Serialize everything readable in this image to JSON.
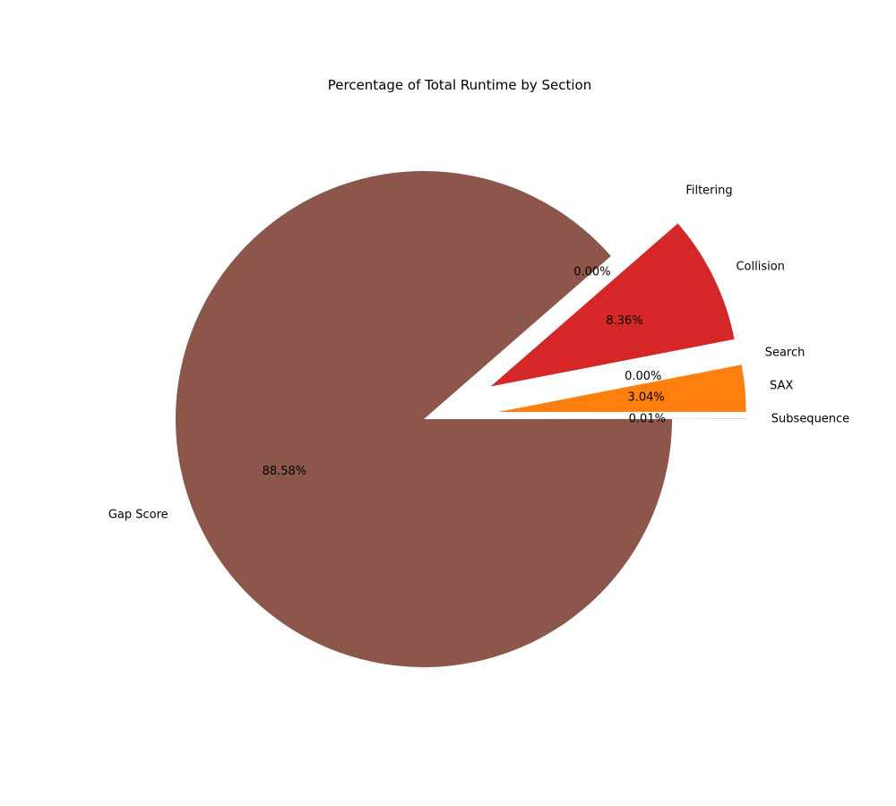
{
  "chart_data": {
    "type": "pie",
    "title": "Percentage of Total Runtime by Section",
    "slices": [
      {
        "label": "Subsequence",
        "value": 0.01,
        "pct_text": "0.01%",
        "color": "#1f77b4"
      },
      {
        "label": "SAX",
        "value": 3.04,
        "pct_text": "3.04%",
        "color": "#ff7f0e"
      },
      {
        "label": "Search",
        "value": 0.0,
        "pct_text": "0.00%",
        "color": "#2ca02c"
      },
      {
        "label": "Collision",
        "value": 8.36,
        "pct_text": "8.36%",
        "color": "#d62728"
      },
      {
        "label": "Filtering",
        "value": 0.0,
        "pct_text": "0.00%",
        "color": "#9467bd"
      },
      {
        "label": "Gap Score",
        "value": 88.58,
        "pct_text": "88.58%",
        "color": "#8c564b"
      }
    ],
    "exploded": [
      "Subsequence",
      "SAX",
      "Search",
      "Collision",
      "Filtering"
    ],
    "start_angle_deg": 0,
    "direction": "counterclockwise"
  }
}
